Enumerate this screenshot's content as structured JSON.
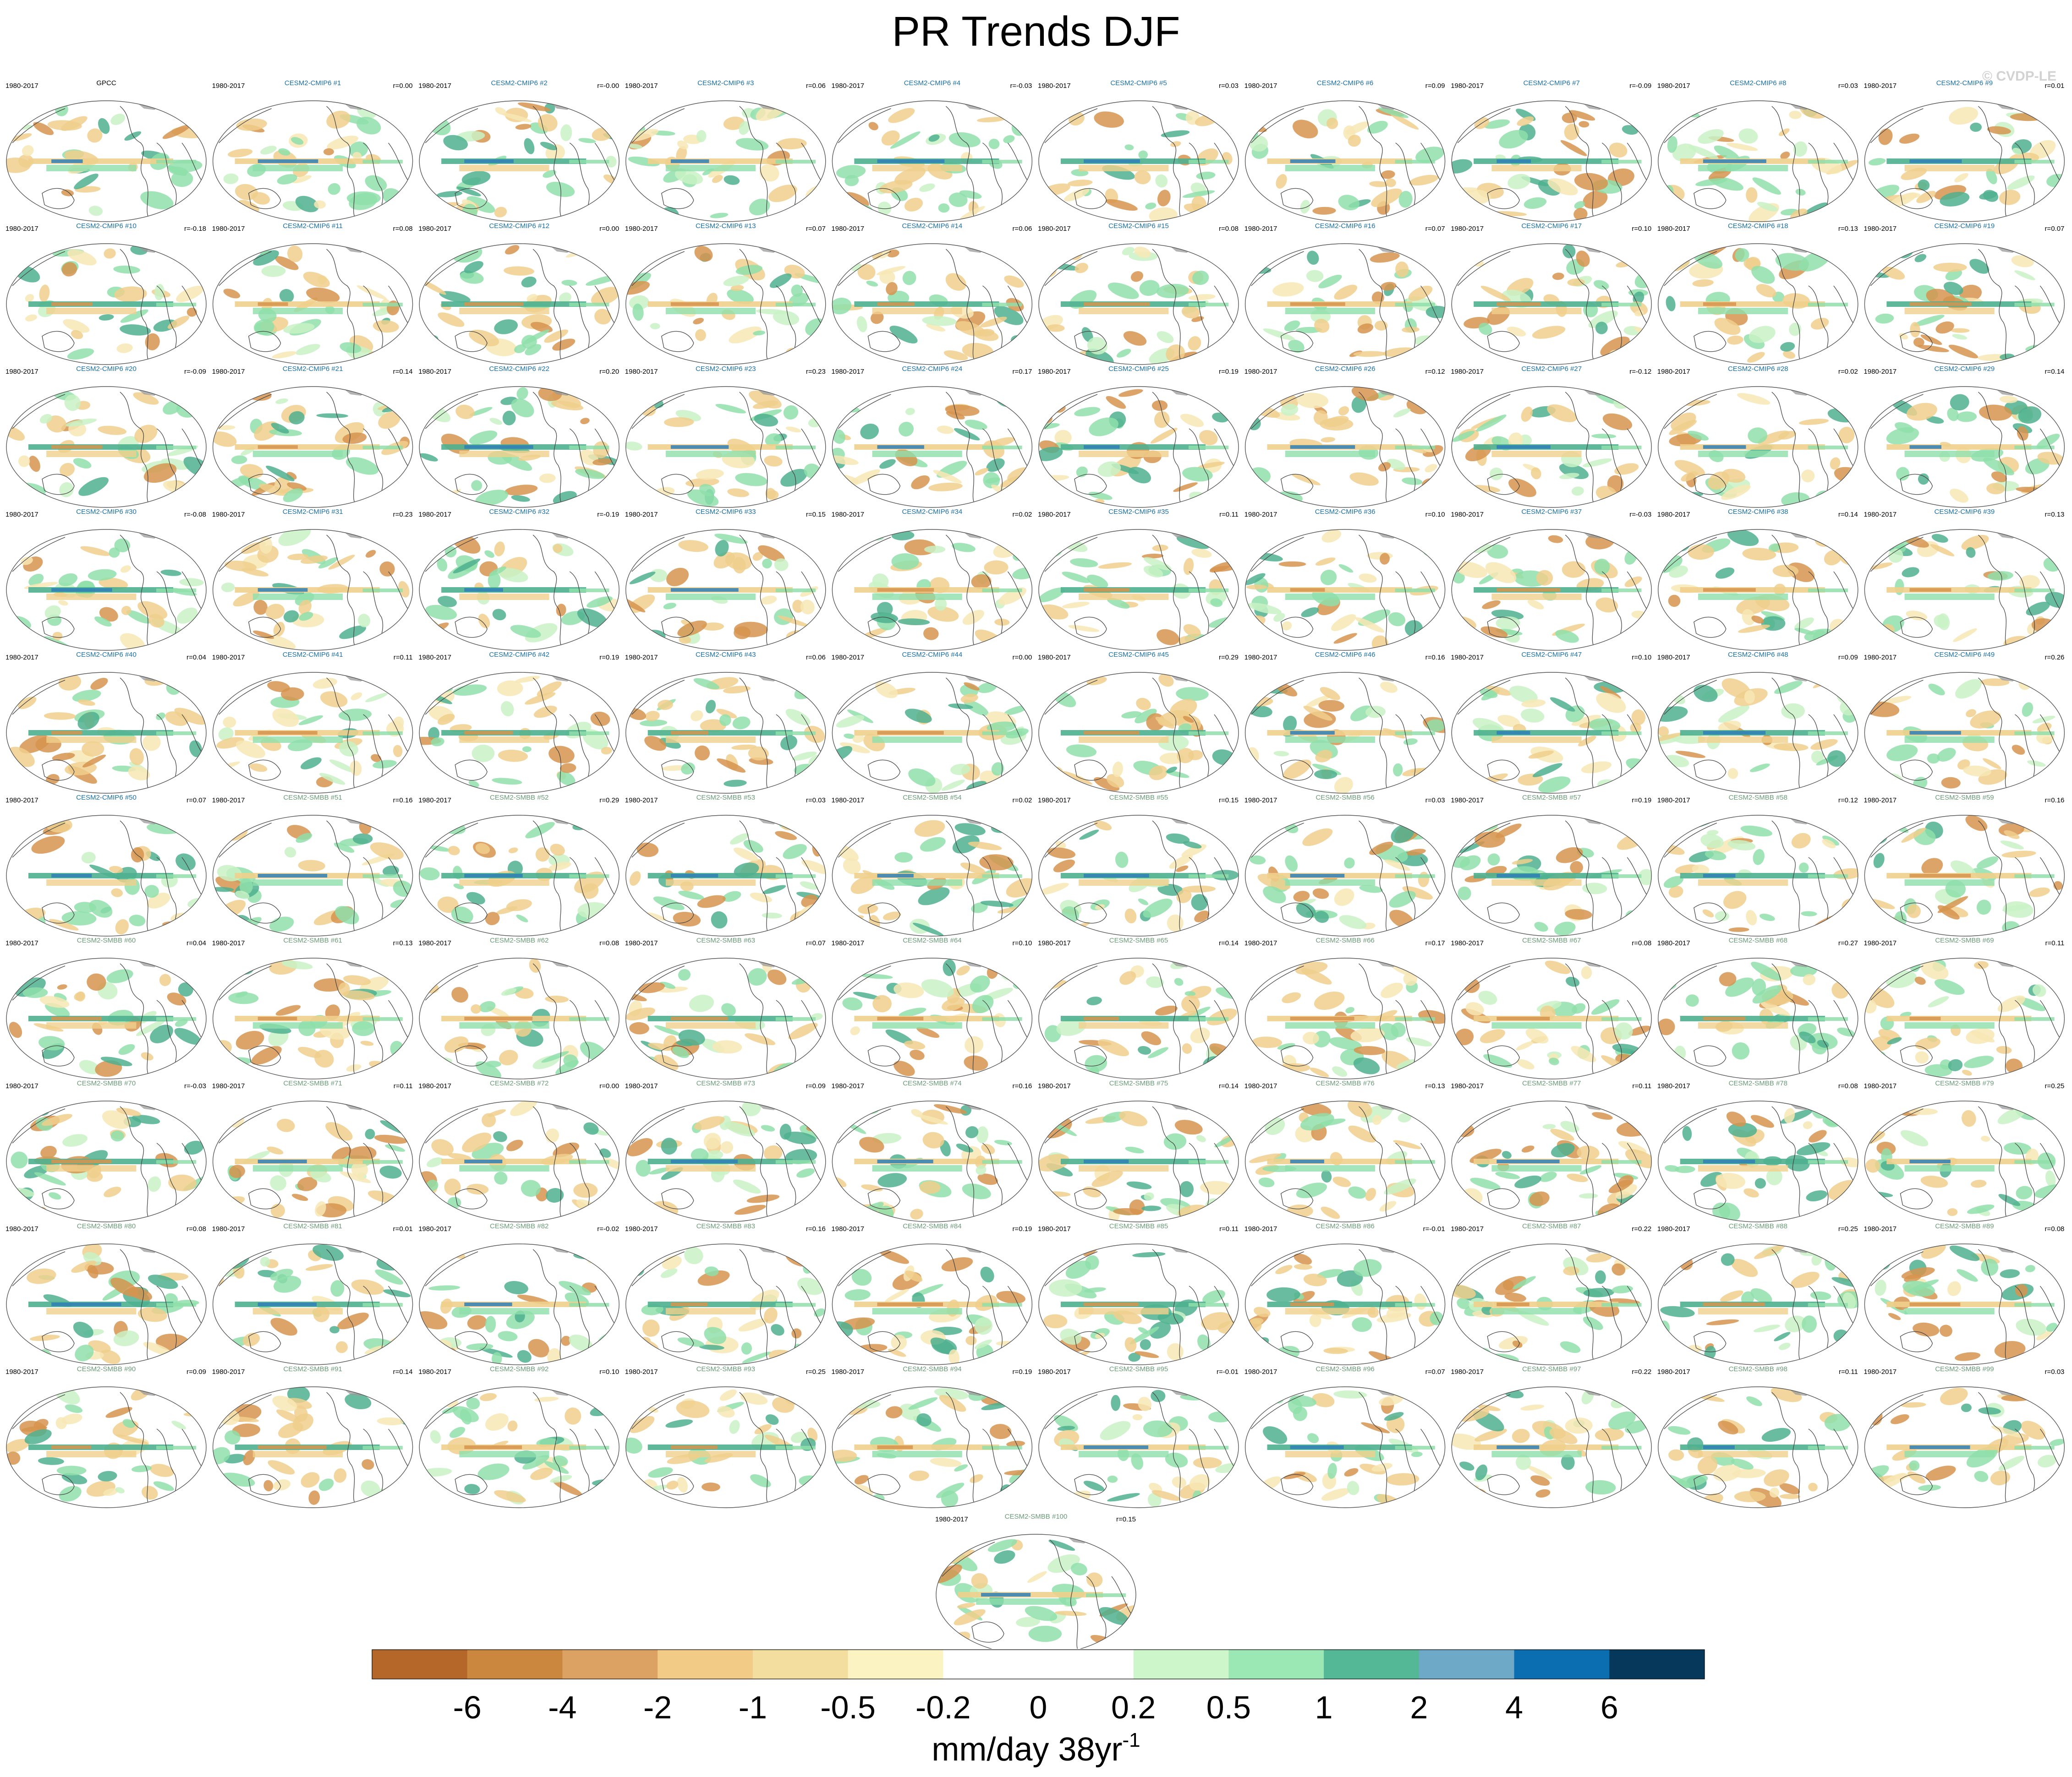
{
  "title": "PR Trends DJF",
  "watermark": "© CVDP-LE",
  "chart_data": {
    "type": "heatmap",
    "title": "PR Trends DJF",
    "projection": "global map panels (ellipse outline), precipitation trend shading",
    "panels": [
      {
        "name": "GPCC",
        "period": "1980-2017",
        "r": "",
        "group": "obs"
      },
      {
        "name": "CESM2-CMIP6 #1",
        "period": "1980-2017",
        "r": "r=0.00",
        "group": "cmip6"
      },
      {
        "name": "CESM2-CMIP6 #2",
        "period": "1980-2017",
        "r": "r=-0.00",
        "group": "cmip6"
      },
      {
        "name": "CESM2-CMIP6 #3",
        "period": "1980-2017",
        "r": "r=0.06",
        "group": "cmip6"
      },
      {
        "name": "CESM2-CMIP6 #4",
        "period": "1980-2017",
        "r": "r=-0.03",
        "group": "cmip6"
      },
      {
        "name": "CESM2-CMIP6 #5",
        "period": "1980-2017",
        "r": "r=0.03",
        "group": "cmip6"
      },
      {
        "name": "CESM2-CMIP6 #6",
        "period": "1980-2017",
        "r": "r=0.09",
        "group": "cmip6"
      },
      {
        "name": "CESM2-CMIP6 #7",
        "period": "1980-2017",
        "r": "r=-0.09",
        "group": "cmip6"
      },
      {
        "name": "CESM2-CMIP6 #8",
        "period": "1980-2017",
        "r": "r=0.03",
        "group": "cmip6"
      },
      {
        "name": "CESM2-CMIP6 #9",
        "period": "1980-2017",
        "r": "r=0.01",
        "group": "cmip6"
      },
      {
        "name": "CESM2-CMIP6 #10",
        "period": "1980-2017",
        "r": "r=-0.18",
        "group": "cmip6"
      },
      {
        "name": "CESM2-CMIP6 #11",
        "period": "1980-2017",
        "r": "r=0.08",
        "group": "cmip6"
      },
      {
        "name": "CESM2-CMIP6 #12",
        "period": "1980-2017",
        "r": "r=0.00",
        "group": "cmip6"
      },
      {
        "name": "CESM2-CMIP6 #13",
        "period": "1980-2017",
        "r": "r=0.07",
        "group": "cmip6"
      },
      {
        "name": "CESM2-CMIP6 #14",
        "period": "1980-2017",
        "r": "r=0.06",
        "group": "cmip6"
      },
      {
        "name": "CESM2-CMIP6 #15",
        "period": "1980-2017",
        "r": "r=0.08",
        "group": "cmip6"
      },
      {
        "name": "CESM2-CMIP6 #16",
        "period": "1980-2017",
        "r": "r=0.07",
        "group": "cmip6"
      },
      {
        "name": "CESM2-CMIP6 #17",
        "period": "1980-2017",
        "r": "r=0.10",
        "group": "cmip6"
      },
      {
        "name": "CESM2-CMIP6 #18",
        "period": "1980-2017",
        "r": "r=0.13",
        "group": "cmip6"
      },
      {
        "name": "CESM2-CMIP6 #19",
        "period": "1980-2017",
        "r": "r=0.07",
        "group": "cmip6"
      },
      {
        "name": "CESM2-CMIP6 #20",
        "period": "1980-2017",
        "r": "r=-0.09",
        "group": "cmip6"
      },
      {
        "name": "CESM2-CMIP6 #21",
        "period": "1980-2017",
        "r": "r=0.14",
        "group": "cmip6"
      },
      {
        "name": "CESM2-CMIP6 #22",
        "period": "1980-2017",
        "r": "r=0.20",
        "group": "cmip6"
      },
      {
        "name": "CESM2-CMIP6 #23",
        "period": "1980-2017",
        "r": "r=0.23",
        "group": "cmip6"
      },
      {
        "name": "CESM2-CMIP6 #24",
        "period": "1980-2017",
        "r": "r=0.17",
        "group": "cmip6"
      },
      {
        "name": "CESM2-CMIP6 #25",
        "period": "1980-2017",
        "r": "r=0.19",
        "group": "cmip6"
      },
      {
        "name": "CESM2-CMIP6 #26",
        "period": "1980-2017",
        "r": "r=0.12",
        "group": "cmip6"
      },
      {
        "name": "CESM2-CMIP6 #27",
        "period": "1980-2017",
        "r": "r=-0.12",
        "group": "cmip6"
      },
      {
        "name": "CESM2-CMIP6 #28",
        "period": "1980-2017",
        "r": "r=0.02",
        "group": "cmip6"
      },
      {
        "name": "CESM2-CMIP6 #29",
        "period": "1980-2017",
        "r": "r=0.14",
        "group": "cmip6"
      },
      {
        "name": "CESM2-CMIP6 #30",
        "period": "1980-2017",
        "r": "r=-0.08",
        "group": "cmip6"
      },
      {
        "name": "CESM2-CMIP6 #31",
        "period": "1980-2017",
        "r": "r=0.23",
        "group": "cmip6"
      },
      {
        "name": "CESM2-CMIP6 #32",
        "period": "1980-2017",
        "r": "r=-0.19",
        "group": "cmip6"
      },
      {
        "name": "CESM2-CMIP6 #33",
        "period": "1980-2017",
        "r": "r=0.15",
        "group": "cmip6"
      },
      {
        "name": "CESM2-CMIP6 #34",
        "period": "1980-2017",
        "r": "r=0.02",
        "group": "cmip6"
      },
      {
        "name": "CESM2-CMIP6 #35",
        "period": "1980-2017",
        "r": "r=0.11",
        "group": "cmip6"
      },
      {
        "name": "CESM2-CMIP6 #36",
        "period": "1980-2017",
        "r": "r=0.10",
        "group": "cmip6"
      },
      {
        "name": "CESM2-CMIP6 #37",
        "period": "1980-2017",
        "r": "r=-0.03",
        "group": "cmip6"
      },
      {
        "name": "CESM2-CMIP6 #38",
        "period": "1980-2017",
        "r": "r=0.14",
        "group": "cmip6"
      },
      {
        "name": "CESM2-CMIP6 #39",
        "period": "1980-2017",
        "r": "r=0.13",
        "group": "cmip6"
      },
      {
        "name": "CESM2-CMIP6 #40",
        "period": "1980-2017",
        "r": "r=0.04",
        "group": "cmip6"
      },
      {
        "name": "CESM2-CMIP6 #41",
        "period": "1980-2017",
        "r": "r=0.11",
        "group": "cmip6"
      },
      {
        "name": "CESM2-CMIP6 #42",
        "period": "1980-2017",
        "r": "r=0.19",
        "group": "cmip6"
      },
      {
        "name": "CESM2-CMIP6 #43",
        "period": "1980-2017",
        "r": "r=0.06",
        "group": "cmip6"
      },
      {
        "name": "CESM2-CMIP6 #44",
        "period": "1980-2017",
        "r": "r=0.00",
        "group": "cmip6"
      },
      {
        "name": "CESM2-CMIP6 #45",
        "period": "1980-2017",
        "r": "r=0.29",
        "group": "cmip6"
      },
      {
        "name": "CESM2-CMIP6 #46",
        "period": "1980-2017",
        "r": "r=0.16",
        "group": "cmip6"
      },
      {
        "name": "CESM2-CMIP6 #47",
        "period": "1980-2017",
        "r": "r=0.10",
        "group": "cmip6"
      },
      {
        "name": "CESM2-CMIP6 #48",
        "period": "1980-2017",
        "r": "r=0.09",
        "group": "cmip6"
      },
      {
        "name": "CESM2-CMIP6 #49",
        "period": "1980-2017",
        "r": "r=0.26",
        "group": "cmip6"
      },
      {
        "name": "CESM2-CMIP6 #50",
        "period": "1980-2017",
        "r": "r=0.07",
        "group": "cmip6"
      },
      {
        "name": "CESM2-SMBB #51",
        "period": "1980-2017",
        "r": "r=0.16",
        "group": "smbb"
      },
      {
        "name": "CESM2-SMBB #52",
        "period": "1980-2017",
        "r": "r=0.29",
        "group": "smbb"
      },
      {
        "name": "CESM2-SMBB #53",
        "period": "1980-2017",
        "r": "r=0.03",
        "group": "smbb"
      },
      {
        "name": "CESM2-SMBB #54",
        "period": "1980-2017",
        "r": "r=0.02",
        "group": "smbb"
      },
      {
        "name": "CESM2-SMBB #55",
        "period": "1980-2017",
        "r": "r=0.15",
        "group": "smbb"
      },
      {
        "name": "CESM2-SMBB #56",
        "period": "1980-2017",
        "r": "r=0.03",
        "group": "smbb"
      },
      {
        "name": "CESM2-SMBB #57",
        "period": "1980-2017",
        "r": "r=0.19",
        "group": "smbb"
      },
      {
        "name": "CESM2-SMBB #58",
        "period": "1980-2017",
        "r": "r=0.12",
        "group": "smbb"
      },
      {
        "name": "CESM2-SMBB #59",
        "period": "1980-2017",
        "r": "r=0.16",
        "group": "smbb"
      },
      {
        "name": "CESM2-SMBB #60",
        "period": "1980-2017",
        "r": "r=0.04",
        "group": "smbb"
      },
      {
        "name": "CESM2-SMBB #61",
        "period": "1980-2017",
        "r": "r=0.13",
        "group": "smbb"
      },
      {
        "name": "CESM2-SMBB #62",
        "period": "1980-2017",
        "r": "r=0.08",
        "group": "smbb"
      },
      {
        "name": "CESM2-SMBB #63",
        "period": "1980-2017",
        "r": "r=0.07",
        "group": "smbb"
      },
      {
        "name": "CESM2-SMBB #64",
        "period": "1980-2017",
        "r": "r=0.10",
        "group": "smbb"
      },
      {
        "name": "CESM2-SMBB #65",
        "period": "1980-2017",
        "r": "r=0.14",
        "group": "smbb"
      },
      {
        "name": "CESM2-SMBB #66",
        "period": "1980-2017",
        "r": "r=0.17",
        "group": "smbb"
      },
      {
        "name": "CESM2-SMBB #67",
        "period": "1980-2017",
        "r": "r=0.08",
        "group": "smbb"
      },
      {
        "name": "CESM2-SMBB #68",
        "period": "1980-2017",
        "r": "r=0.27",
        "group": "smbb"
      },
      {
        "name": "CESM2-SMBB #69",
        "period": "1980-2017",
        "r": "r=0.11",
        "group": "smbb"
      },
      {
        "name": "CESM2-SMBB #70",
        "period": "1980-2017",
        "r": "r=-0.03",
        "group": "smbb"
      },
      {
        "name": "CESM2-SMBB #71",
        "period": "1980-2017",
        "r": "r=0.11",
        "group": "smbb"
      },
      {
        "name": "CESM2-SMBB #72",
        "period": "1980-2017",
        "r": "r=0.00",
        "group": "smbb"
      },
      {
        "name": "CESM2-SMBB #73",
        "period": "1980-2017",
        "r": "r=0.09",
        "group": "smbb"
      },
      {
        "name": "CESM2-SMBB #74",
        "period": "1980-2017",
        "r": "r=0.16",
        "group": "smbb"
      },
      {
        "name": "CESM2-SMBB #75",
        "period": "1980-2017",
        "r": "r=0.14",
        "group": "smbb"
      },
      {
        "name": "CESM2-SMBB #76",
        "period": "1980-2017",
        "r": "r=0.13",
        "group": "smbb"
      },
      {
        "name": "CESM2-SMBB #77",
        "period": "1980-2017",
        "r": "r=0.11",
        "group": "smbb"
      },
      {
        "name": "CESM2-SMBB #78",
        "period": "1980-2017",
        "r": "r=0.08",
        "group": "smbb"
      },
      {
        "name": "CESM2-SMBB #79",
        "period": "1980-2017",
        "r": "r=0.25",
        "group": "smbb"
      },
      {
        "name": "CESM2-SMBB #80",
        "period": "1980-2017",
        "r": "r=0.08",
        "group": "smbb"
      },
      {
        "name": "CESM2-SMBB #81",
        "period": "1980-2017",
        "r": "r=0.01",
        "group": "smbb"
      },
      {
        "name": "CESM2-SMBB #82",
        "period": "1980-2017",
        "r": "r=-0.02",
        "group": "smbb"
      },
      {
        "name": "CESM2-SMBB #83",
        "period": "1980-2017",
        "r": "r=0.16",
        "group": "smbb"
      },
      {
        "name": "CESM2-SMBB #84",
        "period": "1980-2017",
        "r": "r=0.19",
        "group": "smbb"
      },
      {
        "name": "CESM2-SMBB #85",
        "period": "1980-2017",
        "r": "r=0.11",
        "group": "smbb"
      },
      {
        "name": "CESM2-SMBB #86",
        "period": "1980-2017",
        "r": "r=-0.01",
        "group": "smbb"
      },
      {
        "name": "CESM2-SMBB #87",
        "period": "1980-2017",
        "r": "r=0.22",
        "group": "smbb"
      },
      {
        "name": "CESM2-SMBB #88",
        "period": "1980-2017",
        "r": "r=0.25",
        "group": "smbb"
      },
      {
        "name": "CESM2-SMBB #89",
        "period": "1980-2017",
        "r": "r=0.08",
        "group": "smbb"
      },
      {
        "name": "CESM2-SMBB #90",
        "period": "1980-2017",
        "r": "r=0.09",
        "group": "smbb"
      },
      {
        "name": "CESM2-SMBB #91",
        "period": "1980-2017",
        "r": "r=0.14",
        "group": "smbb"
      },
      {
        "name": "CESM2-SMBB #92",
        "period": "1980-2017",
        "r": "r=0.10",
        "group": "smbb"
      },
      {
        "name": "CESM2-SMBB #93",
        "period": "1980-2017",
        "r": "r=0.25",
        "group": "smbb"
      },
      {
        "name": "CESM2-SMBB #94",
        "period": "1980-2017",
        "r": "r=0.19",
        "group": "smbb"
      },
      {
        "name": "CESM2-SMBB #95",
        "period": "1980-2017",
        "r": "r=-0.01",
        "group": "smbb"
      },
      {
        "name": "CESM2-SMBB #96",
        "period": "1980-2017",
        "r": "r=0.07",
        "group": "smbb"
      },
      {
        "name": "CESM2-SMBB #97",
        "period": "1980-2017",
        "r": "r=0.22",
        "group": "smbb"
      },
      {
        "name": "CESM2-SMBB #98",
        "period": "1980-2017",
        "r": "r=0.11",
        "group": "smbb"
      },
      {
        "name": "CESM2-SMBB #99",
        "period": "1980-2017",
        "r": "r=0.03",
        "group": "smbb"
      },
      {
        "name": "CESM2-SMBB #100",
        "period": "1980-2017",
        "r": "r=0.15",
        "group": "smbb"
      }
    ],
    "colorbar": {
      "units": "mm/day 38yr",
      "units_exponent": "-1",
      "levels": [
        "-6",
        "-4",
        "-2",
        "-1",
        "-0.5",
        "-0.2",
        "0",
        "0.2",
        "0.5",
        "1",
        "2",
        "4",
        "6"
      ],
      "colors": [
        "#b5672a",
        "#cc873f",
        "#dca263",
        "#f2cb86",
        "#f3dea0",
        "#fbf3c2",
        "#ffffff",
        "#ffffff",
        "#cdf7cb",
        "#9be8b5",
        "#54b896",
        "#6ea9c7",
        "#0a6eb0",
        "#05385a"
      ]
    },
    "label_colors": {
      "obs": "#000000",
      "cmip6": "#1a6fa3",
      "smbb": "#6a9a78"
    },
    "map_colors": {
      "dry_strong": "#d6944f",
      "dry": "#f0cf8c",
      "dry_light": "#f8e8b5",
      "wet_light": "#c9f2c6",
      "wet": "#8fdfaa",
      "wet_strong": "#4fb08f",
      "wet_max": "#2f7fb6",
      "coast": "#444444",
      "ice": "#9a9a9a"
    }
  }
}
